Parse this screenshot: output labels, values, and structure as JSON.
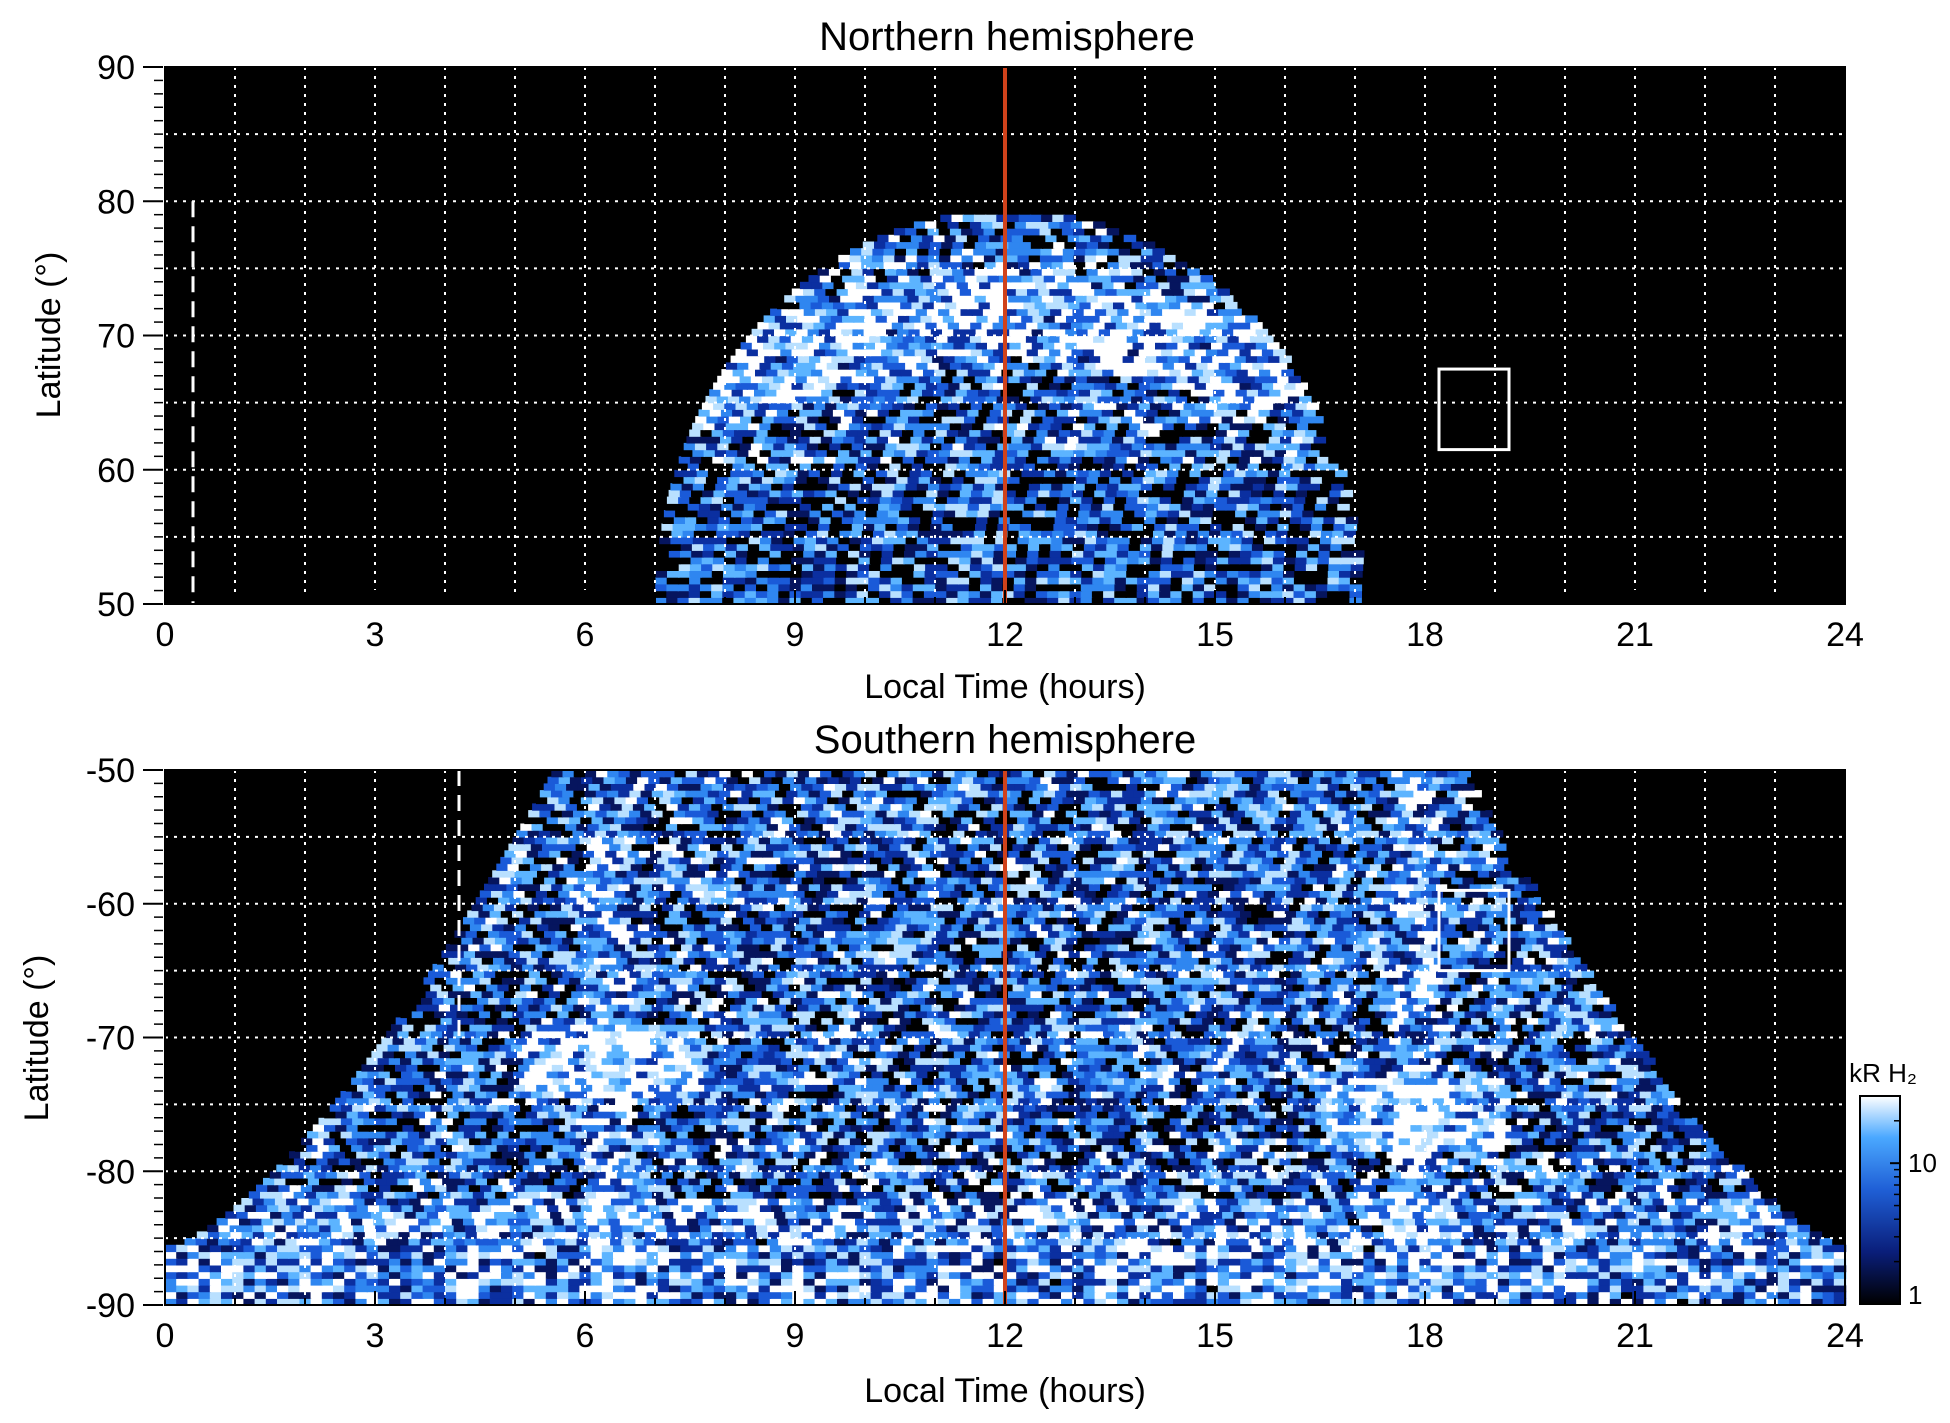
{
  "chart_data": [
    {
      "type": "heatmap",
      "title": "Northern hemisphere",
      "xlabel": "Local Time (hours)",
      "ylabel": "Latitude (°)",
      "xlim": [
        0,
        24
      ],
      "ylim": [
        50,
        90
      ],
      "x_ticks": [
        0,
        3,
        6,
        9,
        12,
        15,
        18,
        21,
        24
      ],
      "x_tick_labels": [
        "0",
        "3",
        "6",
        "9",
        "12",
        "15",
        "18",
        "21",
        "24"
      ],
      "y_ticks": [
        50,
        60,
        70,
        80,
        90
      ],
      "y_tick_labels": [
        "50",
        "60",
        "70",
        "80",
        "90"
      ],
      "grid": true,
      "coverage": {
        "lt_range": [
          7,
          17
        ],
        "max_latitude": 79
      },
      "auroral_oval": {
        "lat_noon": 72,
        "lat_dawn": 66
      },
      "noon_marker": {
        "lt": 12,
        "color": "#d0421b"
      },
      "dashed_marker": {
        "lt": 0.4
      },
      "box": {
        "lt": [
          18.2,
          19.2
        ],
        "lat": [
          61.5,
          67.5
        ]
      }
    },
    {
      "type": "heatmap",
      "title": "Southern hemisphere",
      "xlabel": "Local Time (hours)",
      "ylabel": "Latitude (°)",
      "xlim": [
        0,
        24
      ],
      "ylim": [
        -90,
        -50
      ],
      "x_ticks": [
        0,
        3,
        6,
        9,
        12,
        15,
        18,
        21,
        24
      ],
      "x_tick_labels": [
        "0",
        "3",
        "6",
        "9",
        "12",
        "15",
        "18",
        "21",
        "24"
      ],
      "y_ticks": [
        -90,
        -80,
        -70,
        -60,
        -50
      ],
      "y_tick_labels": [
        "-90",
        "-80",
        "-70",
        "-60",
        "-50"
      ],
      "grid": true,
      "coverage": {
        "lt_range": [
          0,
          24
        ],
        "edge_latitude": -82
      },
      "auroral_features": [
        {
          "lt": 6.3,
          "lat": -72
        },
        {
          "lt": 17.8,
          "lat": -76
        }
      ],
      "noon_marker": {
        "lt": 12,
        "color": "#d0421b"
      },
      "dashed_marker": {
        "lt": 4.2
      },
      "box": {
        "lt": [
          18.2,
          19.2
        ],
        "lat": [
          -65,
          -59
        ]
      }
    }
  ],
  "colorbar": {
    "unit_label": "kR H₂",
    "scale": "log",
    "range": [
      1,
      30
    ],
    "ticks": [
      1,
      10
    ],
    "tick_labels": [
      "1",
      "10"
    ],
    "colors": [
      "#000000",
      "#0a1e7a",
      "#1f5fd6",
      "#4aa8ff",
      "#ffffff"
    ]
  }
}
